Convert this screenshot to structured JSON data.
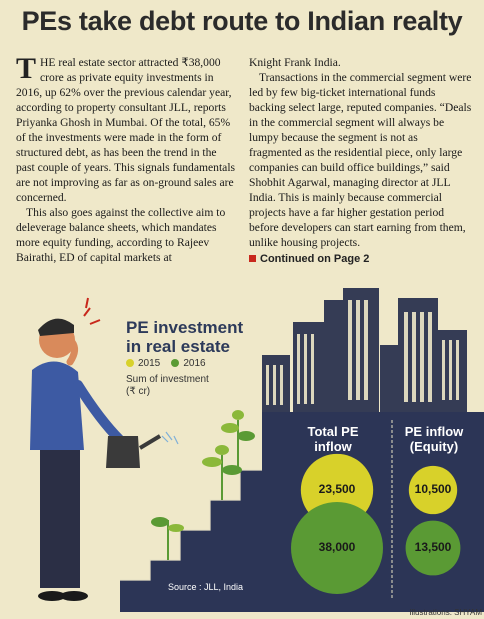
{
  "headline": "PEs take debt route to Indian realty",
  "article": {
    "dropcap": "T",
    "col1": [
      "HE real estate sector attracted ₹38,000 crore as private equity investments in 2016, up 62% over the previous calendar year, according to property consultant JLL, reports Priyanka Ghosh in Mumbai. Of the total, 65% of the investments were made in the form of structured debt, as has been the trend in the past couple of years. This signals fundamentals are not improving as far as on-ground sales are concerned.",
      "This also goes against the collective aim to deleverage balance sheets, which mandates more equity funding, according to Rajeev Bairathi, ED of capital markets at"
    ],
    "col2": [
      "Knight Frank India.",
      "Transactions in the commercial segment were led by few big-ticket international funds backing select large, reputed companies. “Deals in the commercial segment will always be lumpy because the segment is not as fragmented as the residential piece, only large companies can build office buildings,” said Shobhit Agarwal, managing director at JLL India. This is mainly because commercial projects have a far higher gestation period before developers can start earning from them, unlike housing projects."
    ],
    "continued": "Continued on Page 2"
  },
  "infographic": {
    "title_line1": "PE investment",
    "title_line2": "in real estate",
    "legend_2015": "2015",
    "legend_2016": "2016",
    "sum_line1": "Sum of investment",
    "sum_line2": "(₹ cr)",
    "panel1_line1": "Total PE",
    "panel1_line2": "inflow",
    "panel2_line1": "PE inflow",
    "panel2_line2": "(Equity)",
    "source": "Source : JLL, India",
    "credit": "Illustrations: SHYAM",
    "colors": {
      "y2015": "#d8d12a",
      "y2016": "#5a9a34",
      "panel": "#2c3556",
      "sky": "#efe8c9"
    }
  },
  "chart_data": {
    "type": "bubble",
    "categories": [
      "Total PE inflow",
      "PE inflow (Equity)"
    ],
    "series": [
      {
        "name": "2015",
        "values": [
          23500,
          10500
        ]
      },
      {
        "name": "2016",
        "values": [
          38000,
          13500
        ]
      }
    ],
    "ylabel": "Sum of investment (₹ cr)"
  }
}
